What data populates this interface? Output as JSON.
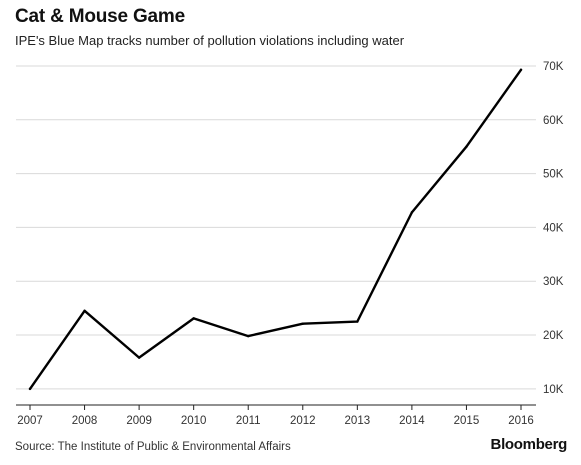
{
  "header": {
    "title": "Cat & Mouse Game",
    "subtitle": "IPE's Blue Map tracks number of pollution violations including water"
  },
  "footer": {
    "source": "Source: The Institute of Public & Environmental Affairs",
    "brand": "Bloomberg"
  },
  "chart_data": {
    "type": "line",
    "title": "Cat & Mouse Game",
    "subtitle": "IPE's Blue Map tracks number of pollution violations including water",
    "x": [
      2007,
      2008,
      2009,
      2010,
      2011,
      2012,
      2013,
      2014,
      2015,
      2016
    ],
    "series": [
      {
        "values": [
          10000,
          24500,
          15800,
          23100,
          19800,
          22100,
          22500,
          42800,
          55000,
          69300
        ]
      }
    ],
    "x_tick_labels": [
      "2007",
      "2008",
      "2009",
      "2010",
      "2011",
      "2012",
      "2013",
      "2014",
      "2015",
      "2016"
    ],
    "y_ticks": [
      10000,
      20000,
      30000,
      40000,
      50000,
      60000,
      70000
    ],
    "y_tick_labels": [
      "10K",
      "20K",
      "30K",
      "40K",
      "50K",
      "60K",
      "70K"
    ],
    "ylim": [
      7000,
      70000
    ],
    "y_axis_side": "right",
    "grid": "horizontal",
    "line_color": "#000000",
    "grid_color": "#d9d9d9"
  }
}
